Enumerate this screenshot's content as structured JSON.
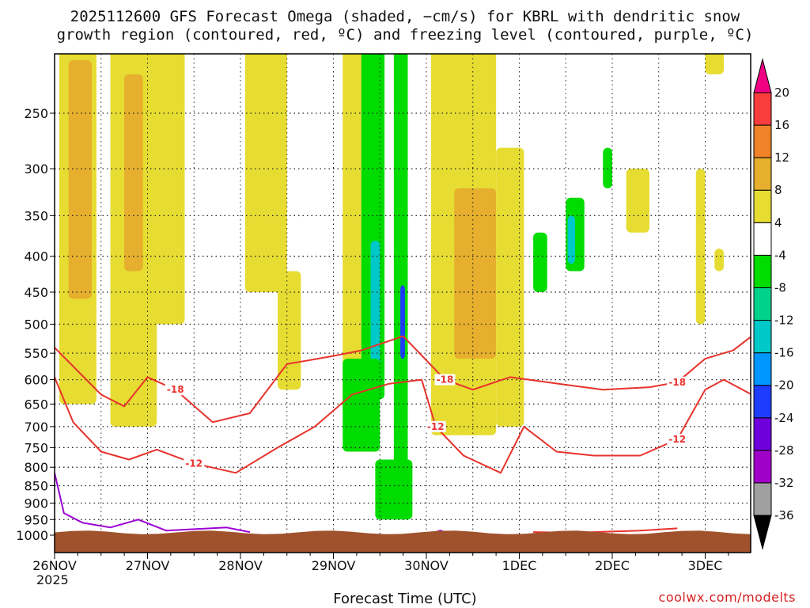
{
  "title_line1": "2025112600 GFS Forecast Omega (shaded, −cm/s) for KBRL with dendritic snow",
  "title_line2": "growth region (contoured, red, ºC) and freezing level (contoured, purple, ºC)",
  "watermark": "coolwx.com/modelts",
  "chart_data": {
    "type": "heatmap",
    "title": "2025112600 GFS Forecast Omega (shaded, −cm/s) for KBRL with dendritic snow growth region (contoured, red, ºC) and freezing level (contoured, purple, ºC)",
    "xlabel": "Forecast Time (UTC)",
    "ylabel": "",
    "y_scale": "log-pressure",
    "ylim": [
      1000,
      200
    ],
    "xlim": [
      "2025-11-26 00Z",
      "2025-12-03 12Z"
    ],
    "grid": true,
    "x_ticks": [
      {
        "label": "26NOV",
        "sub": "2025",
        "day": 0
      },
      {
        "label": "27NOV",
        "sub": "",
        "day": 1
      },
      {
        "label": "28NOV",
        "sub": "",
        "day": 2
      },
      {
        "label": "29NOV",
        "sub": "",
        "day": 3
      },
      {
        "label": "30NOV",
        "sub": "",
        "day": 4
      },
      {
        "label": "1DEC",
        "sub": "",
        "day": 5
      },
      {
        "label": "2DEC",
        "sub": "",
        "day": 6
      },
      {
        "label": "3DEC",
        "sub": "",
        "day": 7
      }
    ],
    "y_ticks": [
      250,
      300,
      350,
      400,
      450,
      500,
      550,
      600,
      650,
      700,
      750,
      800,
      850,
      900,
      950,
      1000
    ],
    "colorbar": {
      "boundaries": [
        -36,
        -32,
        -28,
        -24,
        -20,
        -16,
        -12,
        -8,
        -4,
        4,
        8,
        12,
        16,
        20
      ],
      "colors": [
        "#000000",
        "#a0a0a0",
        "#a000c8",
        "#6e00dc",
        "#1e3cff",
        "#0096ff",
        "#00c8c8",
        "#00d28c",
        "#00dc00",
        "#ffffff",
        "#e6dc32",
        "#e6af2d",
        "#f08228",
        "#fa3c3c",
        "#f00082"
      ]
    },
    "shaded_regions": [
      {
        "day0": 0.05,
        "day1": 0.45,
        "p_top": 200,
        "p_bot": 650,
        "value": 6
      },
      {
        "day0": 0.15,
        "day1": 0.4,
        "p_top": 210,
        "p_bot": 460,
        "value": 10
      },
      {
        "day0": 0.6,
        "day1": 1.1,
        "p_top": 200,
        "p_bot": 700,
        "value": 6
      },
      {
        "day0": 0.75,
        "day1": 0.95,
        "p_top": 220,
        "p_bot": 420,
        "value": 10
      },
      {
        "day0": 1.05,
        "day1": 1.4,
        "p_top": 200,
        "p_bot": 500,
        "value": 6
      },
      {
        "day0": 2.05,
        "day1": 2.5,
        "p_top": 200,
        "p_bot": 450,
        "value": 6
      },
      {
        "day0": 2.4,
        "day1": 2.65,
        "p_top": 420,
        "p_bot": 620,
        "value": 6
      },
      {
        "day0": 3.1,
        "day1": 3.3,
        "p_top": 200,
        "p_bot": 680,
        "value": 6
      },
      {
        "day0": 3.3,
        "day1": 3.55,
        "p_top": 200,
        "p_bot": 640,
        "value": -6
      },
      {
        "day0": 3.4,
        "day1": 3.5,
        "p_top": 380,
        "p_bot": 600,
        "value": -14
      },
      {
        "day0": 3.65,
        "day1": 3.8,
        "p_top": 200,
        "p_bot": 940,
        "value": -6
      },
      {
        "day0": 3.72,
        "day1": 3.77,
        "p_top": 440,
        "p_bot": 560,
        "value": -22
      },
      {
        "day0": 3.1,
        "day1": 3.5,
        "p_top": 560,
        "p_bot": 760,
        "value": -6
      },
      {
        "day0": 3.45,
        "day1": 3.85,
        "p_top": 780,
        "p_bot": 950,
        "value": -6
      },
      {
        "day0": 4.05,
        "day1": 4.75,
        "p_top": 200,
        "p_bot": 720,
        "value": 6
      },
      {
        "day0": 4.3,
        "day1": 4.75,
        "p_top": 320,
        "p_bot": 560,
        "value": 10
      },
      {
        "day0": 4.75,
        "day1": 5.05,
        "p_top": 280,
        "p_bot": 700,
        "value": 6
      },
      {
        "day0": 5.15,
        "day1": 5.3,
        "p_top": 370,
        "p_bot": 450,
        "value": -6
      },
      {
        "day0": 5.5,
        "day1": 5.7,
        "p_top": 330,
        "p_bot": 420,
        "value": -6
      },
      {
        "day0": 5.52,
        "day1": 5.6,
        "p_top": 350,
        "p_bot": 410,
        "value": -14
      },
      {
        "day0": 5.9,
        "day1": 6.0,
        "p_top": 280,
        "p_bot": 320,
        "value": -6
      },
      {
        "day0": 6.15,
        "day1": 6.4,
        "p_top": 300,
        "p_bot": 370,
        "value": 6
      },
      {
        "day0": 6.9,
        "day1": 7.0,
        "p_top": 300,
        "p_bot": 500,
        "value": 6
      },
      {
        "day0": 7.1,
        "day1": 7.2,
        "p_top": 390,
        "p_bot": 420,
        "value": 6
      },
      {
        "day0": 7.0,
        "day1": 7.2,
        "p_top": 200,
        "p_bot": 220,
        "value": 6
      }
    ],
    "contours": [
      {
        "name": "-18",
        "color": "#e8322c",
        "points": [
          [
            0,
            540
          ],
          [
            0.5,
            630
          ],
          [
            0.75,
            655
          ],
          [
            1,
            595
          ],
          [
            1.3,
            620
          ],
          [
            1.7,
            690
          ],
          [
            2.1,
            670
          ],
          [
            2.5,
            570
          ],
          [
            3,
            555
          ],
          [
            3.3,
            545
          ],
          [
            3.75,
            520
          ],
          [
            4.2,
            600
          ],
          [
            4.5,
            620
          ],
          [
            4.9,
            595
          ],
          [
            5.5,
            610
          ],
          [
            5.9,
            620
          ],
          [
            6.4,
            615
          ],
          [
            6.7,
            605
          ],
          [
            7,
            560
          ],
          [
            7.3,
            545
          ],
          [
            7.5,
            520
          ]
        ]
      },
      {
        "name": "-12",
        "color": "#e8322c",
        "points": [
          [
            0,
            595
          ],
          [
            0.2,
            690
          ],
          [
            0.5,
            760
          ],
          [
            0.8,
            780
          ],
          [
            1.1,
            755
          ],
          [
            1.5,
            790
          ],
          [
            1.95,
            815
          ],
          [
            2.4,
            750
          ],
          [
            2.8,
            700
          ],
          [
            3.2,
            630
          ],
          [
            3.6,
            608
          ],
          [
            3.95,
            600
          ],
          [
            4.1,
            700
          ],
          [
            4.4,
            770
          ],
          [
            4.8,
            815
          ],
          [
            5.05,
            700
          ],
          [
            5.4,
            760
          ],
          [
            5.8,
            770
          ],
          [
            6.3,
            770
          ],
          [
            6.7,
            730
          ],
          [
            7,
            620
          ],
          [
            7.2,
            600
          ],
          [
            7.5,
            630
          ]
        ]
      },
      {
        "name": "",
        "color": "#e8322c",
        "points": [
          [
            5.15,
            990
          ],
          [
            5.6,
            992
          ],
          [
            6.3,
            985
          ],
          [
            6.7,
            978
          ]
        ]
      },
      {
        "name": "",
        "color": "#9b00d3",
        "points": [
          [
            0,
            815
          ],
          [
            0.1,
            930
          ],
          [
            0.3,
            960
          ],
          [
            0.6,
            975
          ],
          [
            0.9,
            950
          ],
          [
            1.2,
            985
          ],
          [
            1.85,
            975
          ],
          [
            2.1,
            990
          ]
        ]
      },
      {
        "name": "",
        "color": "#9b00d3",
        "points": [
          [
            2.8,
            995
          ],
          [
            2.95,
            990
          ],
          [
            3.1,
            995
          ]
        ]
      },
      {
        "name": "",
        "color": "#9b00d3",
        "points": [
          [
            4.1,
            990
          ],
          [
            4.15,
            985
          ],
          [
            4.2,
            990
          ]
        ]
      }
    ],
    "surface": {
      "color": "#a0522d",
      "p_top_min": 985,
      "p_top_max": 997
    }
  }
}
